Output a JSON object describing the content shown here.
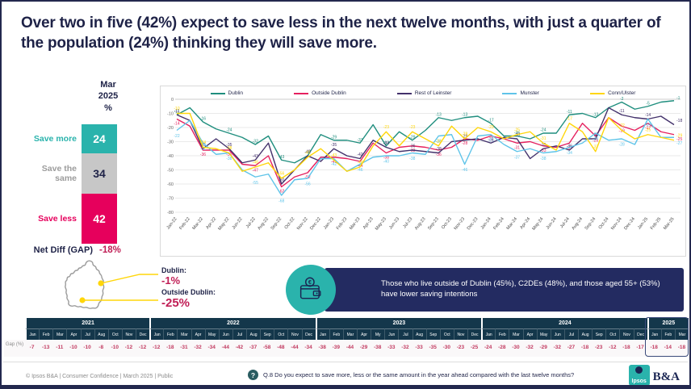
{
  "slide": {
    "title": "Over two in five (42%) expect to save less in the next twelve months, with just a quarter of the population (24%) thinking they will save more."
  },
  "summary_bar": {
    "period_lines": [
      "Mar",
      "2025",
      "%"
    ],
    "segments": [
      {
        "label": "Save more",
        "value": 24,
        "color": "#2ab3ac",
        "label_color": "#2ab3ac",
        "value_color": "#ffffff"
      },
      {
        "label": "Save the same",
        "value": 34,
        "color": "#c7c7c7",
        "label_color": "#9c9c9c",
        "value_color": "#1e2247"
      },
      {
        "label": "Save less",
        "value": 42,
        "color": "#e6005c",
        "label_color": "#e6005c",
        "value_color": "#ffffff"
      }
    ],
    "net_diff_label": "Net Diff (GAP)",
    "net_diff_value": "-18%"
  },
  "chart_data": {
    "type": "line",
    "title": "",
    "xlabel": "",
    "ylabel": "",
    "ylim": [
      -80,
      0
    ],
    "grid": true,
    "legend_position": "top",
    "categories": [
      "Jan-22",
      "Feb-22",
      "Mar-22",
      "Apr-22",
      "May-22",
      "Jun-22",
      "Jul-22",
      "Aug-22",
      "Sep-22",
      "Oct-22",
      "Nov-22",
      "Dec-22",
      "Jan-23",
      "Feb-23",
      "Mar-23",
      "Apr-23",
      "May-23",
      "Jun-23",
      "Jul-23",
      "Aug-23",
      "Sep-23",
      "Oct-23",
      "Nov-23",
      "Dec-23",
      "Jan-24",
      "Feb-24",
      "Mar-24",
      "Apr-24",
      "May-24",
      "Jun-24",
      "Jul-24",
      "Aug-24",
      "Sep-24",
      "Oct-24",
      "Nov-24",
      "Dec-24",
      "Jan-25",
      "Feb-25",
      "Mar-25"
    ],
    "series": [
      {
        "name": "Dublin",
        "color": "#1f8e7e",
        "values": [
          -11,
          -6,
          -16,
          -21,
          -24,
          -27,
          -32,
          -26,
          -43,
          -45,
          -40,
          -25,
          -29,
          -29,
          -31,
          -18,
          -33,
          -23,
          -29,
          -22,
          -13,
          -15,
          -13,
          -12,
          -17,
          -26,
          -26,
          -28,
          -24,
          -24,
          -11,
          -10,
          -13,
          -6,
          -2,
          -7,
          -5,
          -2,
          -1
        ]
      },
      {
        "name": "Outside Dublin",
        "color": "#e5215f",
        "values": [
          -14,
          -19,
          -36,
          -36,
          -36,
          -46,
          -47,
          -40,
          -62,
          -55,
          -52,
          -41,
          -41,
          -42,
          -44,
          -31,
          -38,
          -34,
          -33,
          -34,
          -36,
          -34,
          -28,
          -29,
          -26,
          -28,
          -31,
          -30,
          -33,
          -34,
          -31,
          -17,
          -26,
          -13,
          -19,
          -22,
          -17,
          -23,
          -25
        ]
      },
      {
        "name": "Rest of Leinster",
        "color": "#43316b",
        "values": [
          -11,
          -15,
          -35,
          -28,
          -35,
          -45,
          -43,
          -31,
          -60,
          -50,
          -40,
          -44,
          -35,
          -40,
          -42,
          -29,
          -34,
          -37,
          -36,
          -37,
          -38,
          -30,
          -29,
          -28,
          -31,
          -27,
          -28,
          -42,
          -35,
          -33,
          -36,
          -28,
          -28,
          -6,
          -11,
          -13,
          -14,
          -12,
          -18
        ]
      },
      {
        "name": "Munster",
        "color": "#5fc4e9",
        "values": [
          -22,
          -15,
          -31,
          -39,
          -38,
          -50,
          -55,
          -53,
          -68,
          -57,
          -56,
          -42,
          -42,
          -51,
          -46,
          -41,
          -40,
          -40,
          -38,
          -39,
          -26,
          -25,
          -46,
          -26,
          -25,
          -32,
          -37,
          -35,
          -38,
          -37,
          -34,
          -31,
          -24,
          -29,
          -28,
          -32,
          -14,
          -27,
          -27
        ]
      },
      {
        "name": "Conn/Ulster",
        "color": "#ffd60a",
        "values": [
          -10,
          -10,
          -34,
          -35,
          -38,
          -51,
          -48,
          -45,
          -56,
          -50,
          -41,
          -35,
          -43,
          -51,
          -48,
          -33,
          -23,
          -33,
          -23,
          -28,
          -33,
          -19,
          -28,
          -20,
          -23,
          -28,
          -25,
          -23,
          -31,
          -36,
          -17,
          -23,
          -37,
          -13,
          -22,
          -28,
          -25,
          -27,
          -29
        ]
      }
    ]
  },
  "map": {
    "callouts": [
      {
        "label": "Dublin:",
        "value": "-1%"
      },
      {
        "label": "Outside Dublin:",
        "value": "-25%"
      }
    ]
  },
  "insight": {
    "text": "Those who live outside of Dublin (45%), C2DEs (48%), and those aged 55+ (53%) have lower saving intentions"
  },
  "gap_table": {
    "row_label": "Gap (%)",
    "years": [
      {
        "year": "2021",
        "highlight": false,
        "months": [
          "Jan",
          "Feb",
          "Mar",
          "Apr",
          "Jul",
          "Aug",
          "Oct",
          "Nov",
          "Dec"
        ],
        "values": [
          -7,
          -13,
          -11,
          -10,
          -10,
          -8,
          -10,
          -12,
          -12
        ]
      },
      {
        "year": "2022",
        "highlight": false,
        "months": [
          "Jan",
          "Feb",
          "Mar",
          "Apr",
          "May",
          "Jun",
          "Jul",
          "Aug",
          "Sep",
          "Oct",
          "Nov",
          "Dec"
        ],
        "values": [
          -12,
          -18,
          -31,
          -32,
          -34,
          -44,
          -42,
          -37,
          -58,
          -48,
          -44,
          -34
        ]
      },
      {
        "year": "2023",
        "highlight": false,
        "months": [
          "Jan",
          "Feb",
          "Mar",
          "Apr",
          "My",
          "Jun",
          "Jul",
          "Aug",
          "Sep",
          "Oct",
          "Nov",
          "Dec"
        ],
        "values": [
          -38,
          -39,
          -44,
          -29,
          -38,
          -33,
          -32,
          -33,
          -35,
          -30,
          -23,
          -25
        ]
      },
      {
        "year": "2024",
        "highlight": false,
        "months": [
          "Jan",
          "Feb",
          "Mar",
          "Apr",
          "May",
          "Jun",
          "Jul",
          "Aug",
          "Sep",
          "Oct",
          "Nov",
          "Dec"
        ],
        "values": [
          -24,
          -28,
          -30,
          -32,
          -29,
          -32,
          -27,
          -18,
          -23,
          -12,
          -18,
          -17
        ]
      },
      {
        "year": "2025",
        "highlight": true,
        "months": [
          "Jan",
          "Feb",
          "Mar"
        ],
        "values": [
          -18,
          -14,
          -18
        ]
      }
    ]
  },
  "footer": {
    "source": "© Ipsos B&A | Consumer Confidence | March 2025 | Public",
    "question": "Q.8 Do you expect to save more, less or the same amount in the year ahead compared with the last twelve months?",
    "logo": {
      "ipsos": "Ipsos",
      "ba": "B&A"
    }
  },
  "colors": {
    "navy": "#1e2247",
    "table_header": "#14374b",
    "insight_bg": "#232b61",
    "teal": "#2ab3ac",
    "crimson": "#c01d55",
    "bar_pink": "#e6005c"
  }
}
